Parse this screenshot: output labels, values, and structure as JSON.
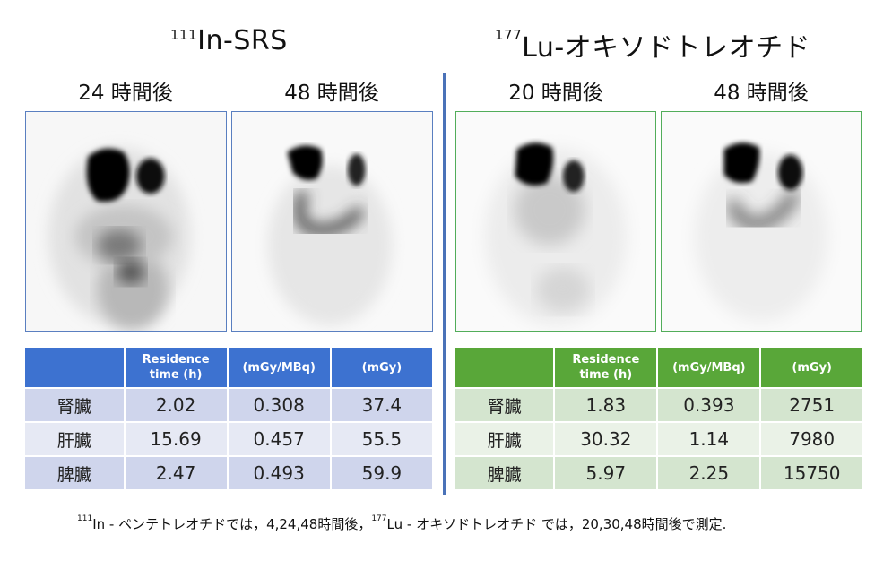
{
  "left": {
    "title_sup": "111",
    "title_main": "In-SRS",
    "times": [
      "24 時間後",
      "48 時間後"
    ],
    "table": {
      "headers": [
        "",
        "Residence\ntime (h)",
        "(mGy/MBq)",
        "(mGy)"
      ],
      "rows": [
        {
          "organ": "腎臓",
          "residence": "2.02",
          "per_mbq": "0.308",
          "mgy": "37.4"
        },
        {
          "organ": "肝臓",
          "residence": "15.69",
          "per_mbq": "0.457",
          "mgy": "55.5"
        },
        {
          "organ": "脾臓",
          "residence": "2.47",
          "per_mbq": "0.493",
          "mgy": "59.9"
        }
      ]
    }
  },
  "right": {
    "title_sup": "177",
    "title_main": "Lu-オキソドトレオチド",
    "times": [
      "20 時間後",
      "48 時間後"
    ],
    "table": {
      "headers": [
        "",
        "Residence\ntime (h)",
        "(mGy/MBq)",
        "(mGy)"
      ],
      "rows": [
        {
          "organ": "腎臓",
          "residence": "1.83",
          "per_mbq": "0.393",
          "mgy": "2751"
        },
        {
          "organ": "肝臓",
          "residence": "30.32",
          "per_mbq": "1.14",
          "mgy": "7980"
        },
        {
          "organ": "脾臓",
          "residence": "5.97",
          "per_mbq": "2.25",
          "mgy": "15750"
        }
      ]
    }
  },
  "footnote": {
    "sup1": "111",
    "part1": "In - ペンテトレオチドでは，4,24,48時間後，",
    "sup2": "177",
    "part2": "Lu - オキソドトレオチド では，20,30,48時間後で測定."
  },
  "colors": {
    "divider": "#4a72b8",
    "left_header": "#3d72d0",
    "right_header": "#59a739",
    "left_frame": "#5a7fc0",
    "right_frame": "#52ad5a"
  }
}
